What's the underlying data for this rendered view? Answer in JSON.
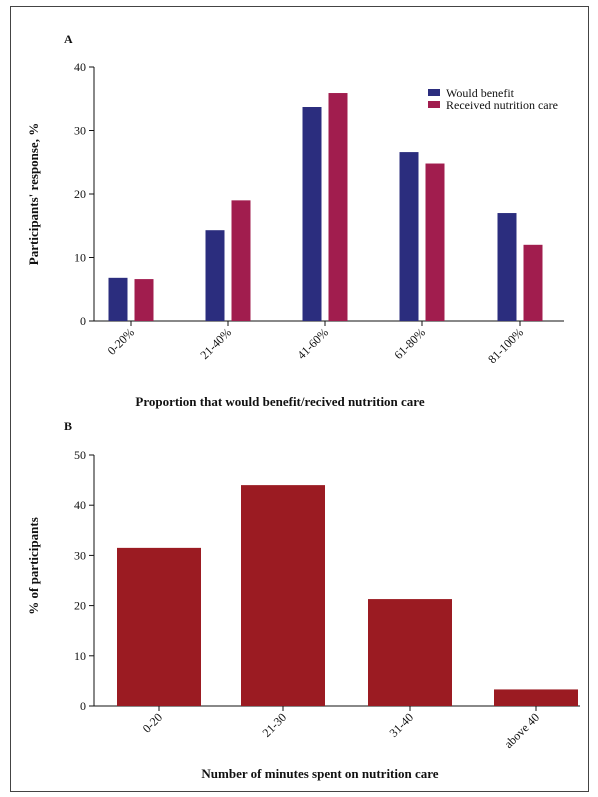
{
  "colors": {
    "would_benefit": "#2b2d7e",
    "received_care": "#a11d4e",
    "minutes_bar": "#9b1b22",
    "axis": "#111111"
  },
  "chart_data": [
    {
      "panel": "A",
      "type": "bar",
      "categories": [
        "0-20%",
        "21-40%",
        "41-60%",
        "61-80%",
        "81-100%"
      ],
      "series": [
        {
          "name": "Would benefit",
          "values": [
            6.8,
            14.3,
            33.7,
            26.6,
            17.0
          ]
        },
        {
          "name": "Received nutrition care",
          "values": [
            6.6,
            19.0,
            35.9,
            24.8,
            12.0
          ]
        }
      ],
      "xlabel": "Proportion that would benefit/recived nutrition care",
      "ylabel": "Participants' response, %",
      "ylim": [
        0,
        40
      ],
      "yticks": [
        0,
        10,
        20,
        30,
        40
      ],
      "legend_position": "top-right"
    },
    {
      "panel": "B",
      "type": "bar",
      "categories": [
        "0-20",
        "21-30",
        "31-40",
        "above 40"
      ],
      "series": [
        {
          "values": [
            31.5,
            44.0,
            21.3,
            3.3
          ]
        }
      ],
      "xlabel": "Number of minutes spent on nutrition care",
      "ylabel": "% of participants",
      "ylim": [
        0,
        50
      ],
      "yticks": [
        0,
        10,
        20,
        30,
        40,
        50
      ]
    }
  ]
}
